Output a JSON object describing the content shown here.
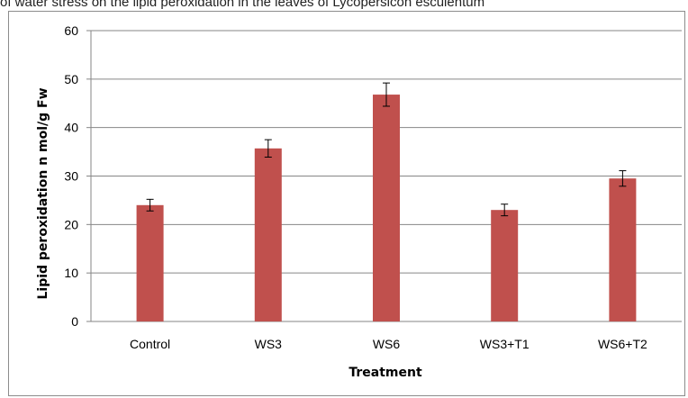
{
  "caption": "of water stress on the lipid peroxidation in the leaves of Lycopersicon esculentum",
  "chart_data": {
    "type": "bar",
    "title": "",
    "xlabel": "Treatment",
    "ylabel": "Lipid peroxidation n mol/g Fw",
    "categories": [
      "Control",
      "WS3",
      "WS6",
      "WS3+T1",
      "WS6+T2"
    ],
    "values": [
      24.0,
      35.7,
      46.8,
      23.0,
      29.5
    ],
    "errors": [
      1.2,
      1.8,
      2.4,
      1.2,
      1.6
    ],
    "ylim": [
      0,
      60
    ],
    "yticks": [
      0,
      10,
      20,
      30,
      40,
      50,
      60
    ],
    "grid": true,
    "legend": "none",
    "bar_color": "#c0504d"
  }
}
